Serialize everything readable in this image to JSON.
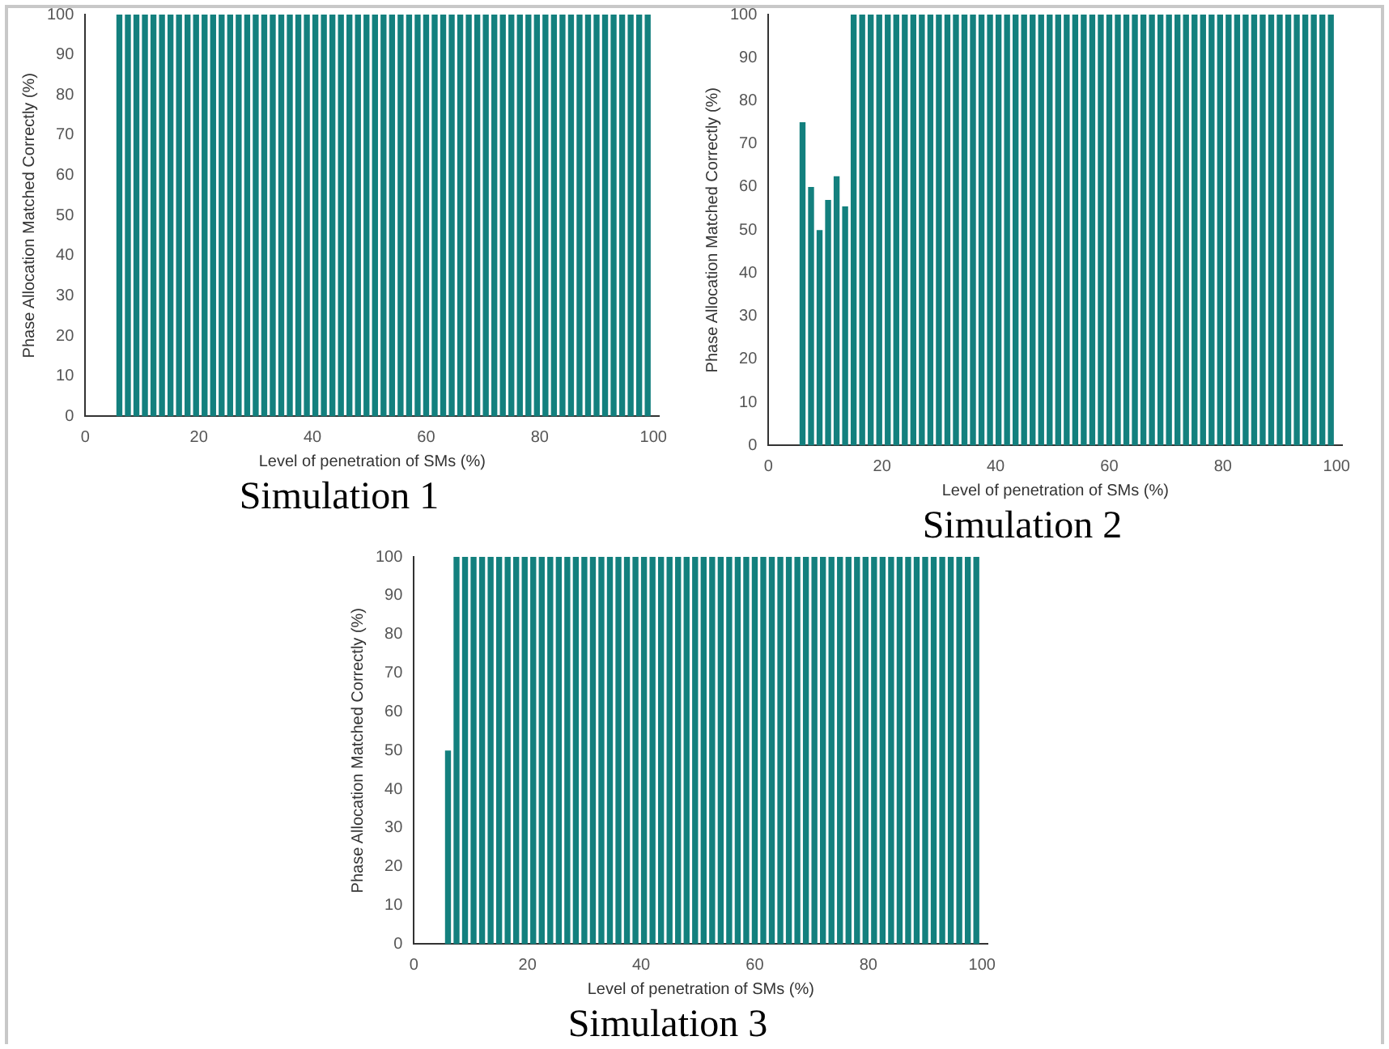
{
  "chart_data": [
    {
      "type": "bar",
      "title": "Simulation 1",
      "xlabel": "Level of penetration of SMs (%)",
      "ylabel": "Phase Allocation Matched Correctly (%)",
      "xlim": [
        0,
        101
      ],
      "xticks": [
        0,
        20,
        40,
        60,
        80,
        100
      ],
      "ylim": [
        0,
        100
      ],
      "yticks": [
        0,
        10,
        20,
        30,
        40,
        50,
        60,
        70,
        80,
        90,
        100
      ],
      "color": "#13807e",
      "x": [
        6,
        7.5,
        9,
        10.5,
        12,
        13.5,
        15,
        16.5,
        18,
        19.5,
        21,
        22.5,
        24,
        25.5,
        27,
        28.5,
        30,
        31.5,
        33,
        34.5,
        36,
        37.5,
        39,
        40.5,
        42,
        43.5,
        45,
        46.5,
        48,
        49.5,
        51,
        52.5,
        54,
        55.5,
        57,
        58.5,
        60,
        61.5,
        63,
        64.5,
        66,
        67.5,
        69,
        70.5,
        72,
        73.5,
        75,
        76.5,
        78,
        79.5,
        81,
        82.5,
        84,
        85.5,
        87,
        88.5,
        90,
        91.5,
        93,
        94.5,
        96,
        97.5,
        99
      ],
      "values": [
        100,
        100,
        100,
        100,
        100,
        100,
        100,
        100,
        100,
        100,
        100,
        100,
        100,
        100,
        100,
        100,
        100,
        100,
        100,
        100,
        100,
        100,
        100,
        100,
        100,
        100,
        100,
        100,
        100,
        100,
        100,
        100,
        100,
        100,
        100,
        100,
        100,
        100,
        100,
        100,
        100,
        100,
        100,
        100,
        100,
        100,
        100,
        100,
        100,
        100,
        100,
        100,
        100,
        100,
        100,
        100,
        100,
        100,
        100,
        100,
        100,
        100,
        100
      ]
    },
    {
      "type": "bar",
      "title": "Simulation 2",
      "xlabel": "Level of penetration of SMs (%)",
      "ylabel": "Phase Allocation Matched Correctly (%)",
      "xlim": [
        0,
        101
      ],
      "xticks": [
        0,
        20,
        40,
        60,
        80,
        100
      ],
      "ylim": [
        0,
        100
      ],
      "yticks": [
        0,
        10,
        20,
        30,
        40,
        50,
        60,
        70,
        80,
        90,
        100
      ],
      "color": "#13807e",
      "x": [
        6,
        7.5,
        9,
        10.5,
        12,
        13.5,
        15,
        16.5,
        18,
        19.5,
        21,
        22.5,
        24,
        25.5,
        27,
        28.5,
        30,
        31.5,
        33,
        34.5,
        36,
        37.5,
        39,
        40.5,
        42,
        43.5,
        45,
        46.5,
        48,
        49.5,
        51,
        52.5,
        54,
        55.5,
        57,
        58.5,
        60,
        61.5,
        63,
        64.5,
        66,
        67.5,
        69,
        70.5,
        72,
        73.5,
        75,
        76.5,
        78,
        79.5,
        81,
        82.5,
        84,
        85.5,
        87,
        88.5,
        90,
        91.5,
        93,
        94.5,
        96,
        97.5,
        99
      ],
      "values": [
        75,
        60,
        50,
        57,
        62.5,
        55.5,
        100,
        100,
        100,
        100,
        100,
        100,
        100,
        100,
        100,
        100,
        100,
        100,
        100,
        100,
        100,
        100,
        100,
        100,
        100,
        100,
        100,
        100,
        100,
        100,
        100,
        100,
        100,
        100,
        100,
        100,
        100,
        100,
        100,
        100,
        100,
        100,
        100,
        100,
        100,
        100,
        100,
        100,
        100,
        100,
        100,
        100,
        100,
        100,
        100,
        100,
        100,
        100,
        100,
        100,
        100,
        100,
        100
      ]
    },
    {
      "type": "bar",
      "title": "Simulation 3",
      "xlabel": "Level of penetration of SMs (%)",
      "ylabel": "Phase Allocation Matched Correctly (%)",
      "xlim": [
        0,
        101
      ],
      "xticks": [
        0,
        20,
        40,
        60,
        80,
        100
      ],
      "ylim": [
        0,
        100
      ],
      "yticks": [
        0,
        10,
        20,
        30,
        40,
        50,
        60,
        70,
        80,
        90,
        100
      ],
      "color": "#13807e",
      "x": [
        6,
        7.5,
        9,
        10.5,
        12,
        13.5,
        15,
        16.5,
        18,
        19.5,
        21,
        22.5,
        24,
        25.5,
        27,
        28.5,
        30,
        31.5,
        33,
        34.5,
        36,
        37.5,
        39,
        40.5,
        42,
        43.5,
        45,
        46.5,
        48,
        49.5,
        51,
        52.5,
        54,
        55.5,
        57,
        58.5,
        60,
        61.5,
        63,
        64.5,
        66,
        67.5,
        69,
        70.5,
        72,
        73.5,
        75,
        76.5,
        78,
        79.5,
        81,
        82.5,
        84,
        85.5,
        87,
        88.5,
        90,
        91.5,
        93,
        94.5,
        96,
        97.5,
        99
      ],
      "values": [
        50,
        100,
        100,
        100,
        100,
        100,
        100,
        100,
        100,
        100,
        100,
        100,
        100,
        100,
        100,
        100,
        100,
        100,
        100,
        100,
        100,
        100,
        100,
        100,
        100,
        100,
        100,
        100,
        100,
        100,
        100,
        100,
        100,
        100,
        100,
        100,
        100,
        100,
        100,
        100,
        100,
        100,
        100,
        100,
        100,
        100,
        100,
        100,
        100,
        100,
        100,
        100,
        100,
        100,
        100,
        100,
        100,
        100,
        100,
        100,
        100,
        100,
        100
      ]
    }
  ]
}
